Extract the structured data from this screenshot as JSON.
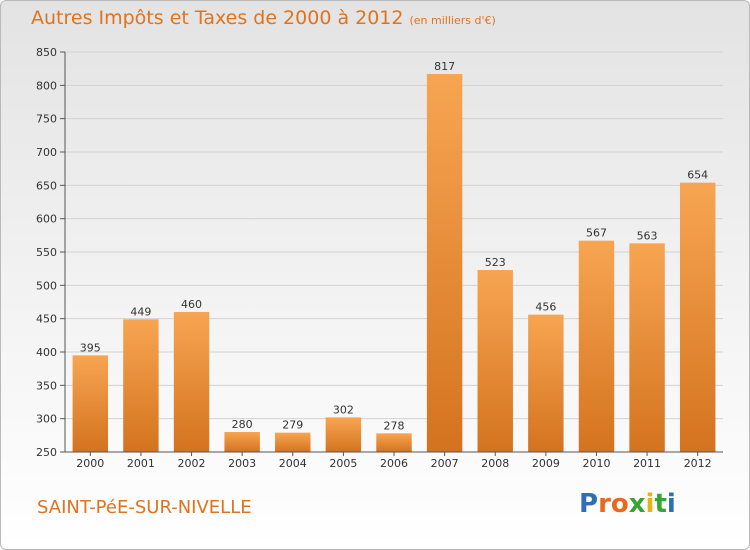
{
  "header": {
    "title": "Autres Impôts et Taxes de 2000 à 2012",
    "unit": "(en milliers d'€)"
  },
  "footer": {
    "commune": "SAINT-PéE-SUR-NIVELLE",
    "logo_letters": [
      "P",
      "r",
      "o",
      "x",
      "i",
      "t",
      "i"
    ],
    "logo_colors": [
      "#2c6fb8",
      "#e86a1a",
      "#e86a1a",
      "#3aa335",
      "#e8b21a",
      "#3aa335",
      "#2c6fb8"
    ]
  },
  "chart_data": {
    "type": "bar",
    "categories": [
      "2000",
      "2001",
      "2002",
      "2003",
      "2004",
      "2005",
      "2006",
      "2007",
      "2008",
      "2009",
      "2010",
      "2011",
      "2012"
    ],
    "values": [
      395,
      449,
      460,
      280,
      279,
      302,
      278,
      817,
      523,
      456,
      567,
      563,
      654
    ],
    "ylim": [
      250,
      850
    ],
    "yticks": [
      250,
      300,
      350,
      400,
      450,
      500,
      550,
      600,
      650,
      700,
      750,
      800,
      850
    ],
    "grid": true,
    "colors": {
      "bar_light": "#f7a552",
      "bar_dark": "#d4731f",
      "grid": "#d2d2d2"
    }
  }
}
